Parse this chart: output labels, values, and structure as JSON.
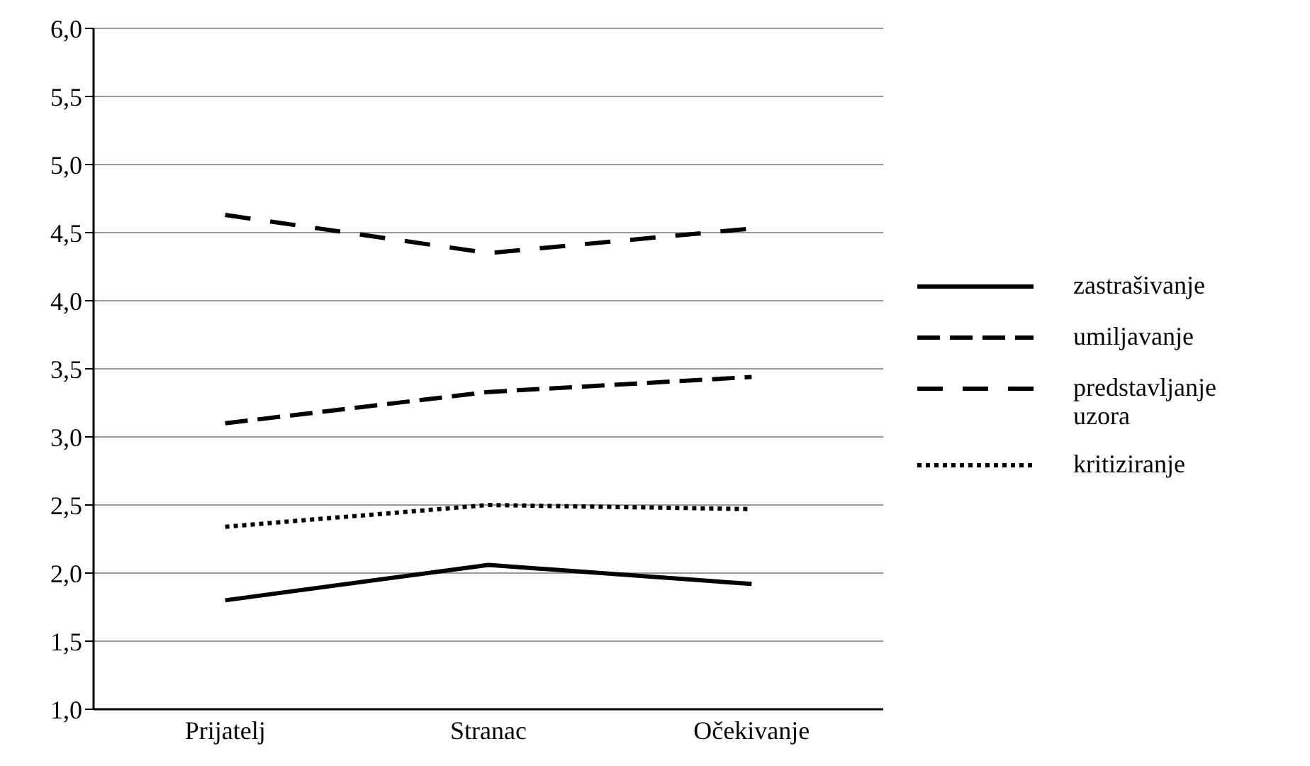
{
  "chart_data": {
    "type": "line",
    "categories": [
      "Prijatelj",
      "Stranac",
      "Očekivanje"
    ],
    "series": [
      {
        "name": "zastrašivanje",
        "color": "#000000",
        "line_style": "solid",
        "values": [
          1.8,
          2.06,
          1.92
        ]
      },
      {
        "name": "umiljavanje",
        "color": "#000000",
        "line_style": "dashed",
        "values": [
          3.1,
          3.33,
          3.44
        ]
      },
      {
        "name": "predstavljanje uzora",
        "color": "#000000",
        "line_style": "dashed",
        "values": [
          4.63,
          4.35,
          4.53
        ]
      },
      {
        "name": "kritiziranje",
        "color": "#000000",
        "line_style": "dotted",
        "values": [
          2.34,
          2.5,
          2.47
        ]
      }
    ],
    "ylim": [
      1,
      6
    ],
    "yticks": [
      {
        "value": 1,
        "label": "1,0"
      },
      {
        "value": 1.5,
        "label": "1,5"
      },
      {
        "value": 2,
        "label": "2,0"
      },
      {
        "value": 2.5,
        "label": "2,5"
      },
      {
        "value": 3,
        "label": "3,0"
      },
      {
        "value": 3.5,
        "label": "3,5"
      },
      {
        "value": 4,
        "label": "4,0"
      },
      {
        "value": 4.5,
        "label": "4,5"
      },
      {
        "value": 5,
        "label": "5,0"
      },
      {
        "value": 5.5,
        "label": "5,5"
      },
      {
        "value": 6,
        "label": "6,0"
      }
    ],
    "grid": "y",
    "legend": "right",
    "marker": "none"
  }
}
